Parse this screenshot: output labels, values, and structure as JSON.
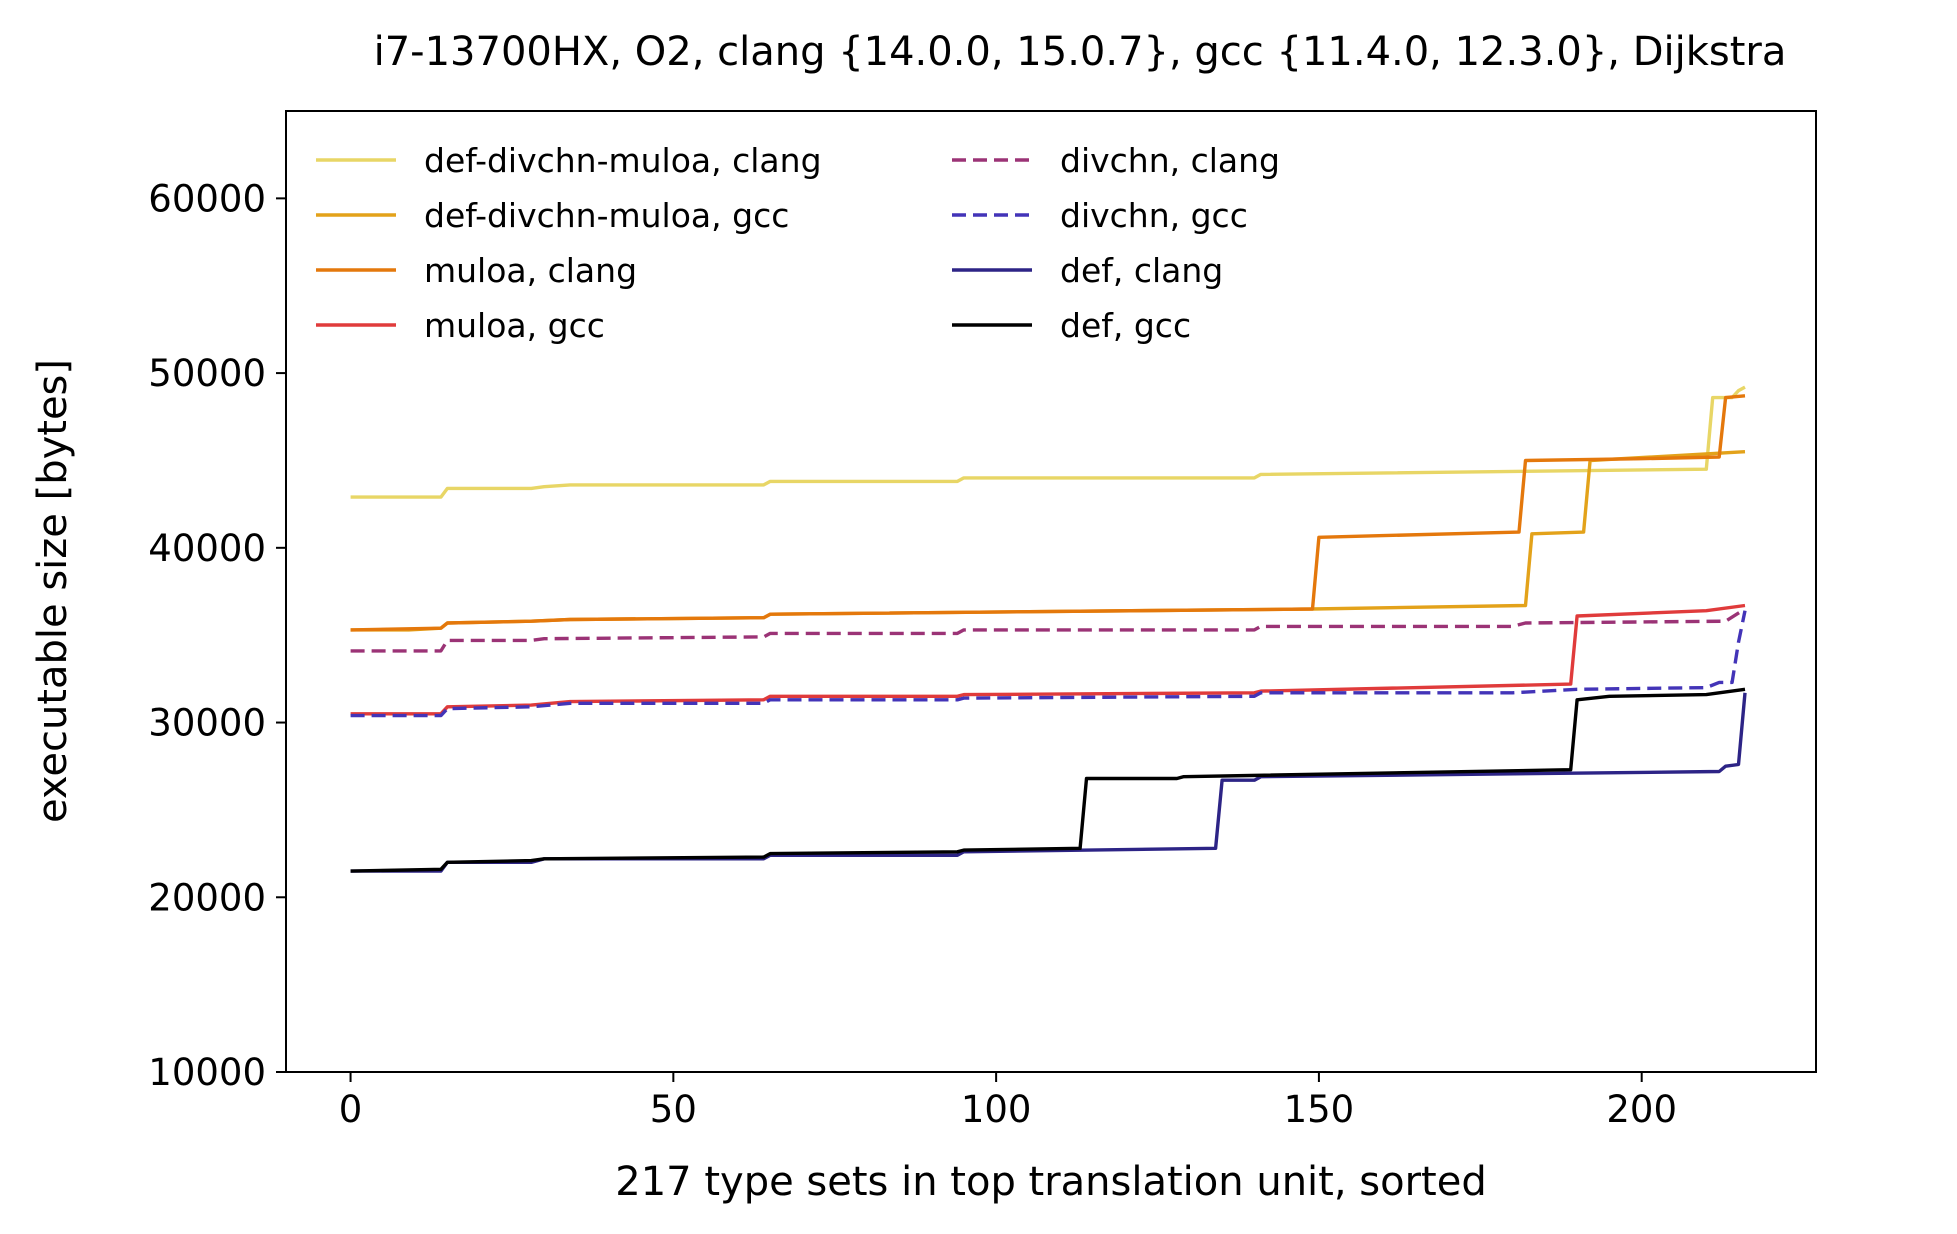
{
  "chart_data": {
    "type": "line",
    "title": "i7-13700HX, O2, clang {14.0.0, 15.0.7}, gcc {11.4.0, 12.3.0}, Dijkstra",
    "xlabel": "217 type sets in top translation unit, sorted",
    "ylabel": "executable size [bytes]",
    "xlim": [
      -10,
      227
    ],
    "ylim": [
      10000,
      65000
    ],
    "xticks": [
      0,
      50,
      100,
      150,
      200
    ],
    "yticks": [
      10000,
      20000,
      30000,
      40000,
      50000,
      60000
    ],
    "grid": false,
    "legend_position": "top-left",
    "legend_columns": 2,
    "series": [
      {
        "name": "def-divchn-muloa, clang",
        "color": "#e8d666",
        "style": "solid",
        "points": [
          [
            0,
            42900
          ],
          [
            14,
            42900
          ],
          [
            15,
            43400
          ],
          [
            28,
            43400
          ],
          [
            30,
            43500
          ],
          [
            34,
            43600
          ],
          [
            64,
            43600
          ],
          [
            65,
            43800
          ],
          [
            94,
            43800
          ],
          [
            95,
            44000
          ],
          [
            140,
            44000
          ],
          [
            141,
            44200
          ],
          [
            210,
            44500
          ],
          [
            211,
            48600
          ],
          [
            214,
            48600
          ],
          [
            215,
            49000
          ],
          [
            216,
            49200
          ]
        ]
      },
      {
        "name": "def-divchn-muloa, gcc",
        "color": "#e3a21a",
        "style": "solid",
        "points": [
          [
            0,
            35300
          ],
          [
            9,
            35300
          ],
          [
            14,
            35400
          ],
          [
            15,
            35700
          ],
          [
            28,
            35800
          ],
          [
            34,
            35900
          ],
          [
            64,
            36000
          ],
          [
            65,
            36200
          ],
          [
            149,
            36500
          ],
          [
            182,
            36700
          ],
          [
            183,
            40800
          ],
          [
            191,
            40900
          ],
          [
            192,
            45000
          ],
          [
            216,
            45500
          ]
        ]
      },
      {
        "name": "muloa, clang",
        "color": "#e4780c",
        "style": "solid",
        "points": [
          [
            0,
            35300
          ],
          [
            14,
            35400
          ],
          [
            15,
            35700
          ],
          [
            28,
            35800
          ],
          [
            34,
            35900
          ],
          [
            64,
            36000
          ],
          [
            65,
            36200
          ],
          [
            149,
            36500
          ],
          [
            150,
            40600
          ],
          [
            160,
            40700
          ],
          [
            181,
            40900
          ],
          [
            182,
            45000
          ],
          [
            200,
            45100
          ],
          [
            212,
            45200
          ],
          [
            213,
            48600
          ],
          [
            216,
            48700
          ]
        ]
      },
      {
        "name": "muloa, gcc",
        "color": "#e03b3b",
        "style": "solid",
        "points": [
          [
            0,
            30500
          ],
          [
            14,
            30500
          ],
          [
            15,
            30900
          ],
          [
            28,
            31000
          ],
          [
            34,
            31200
          ],
          [
            64,
            31300
          ],
          [
            65,
            31500
          ],
          [
            94,
            31500
          ],
          [
            95,
            31600
          ],
          [
            140,
            31700
          ],
          [
            141,
            31800
          ],
          [
            189,
            32200
          ],
          [
            190,
            36100
          ],
          [
            210,
            36400
          ],
          [
            216,
            36700
          ]
        ]
      },
      {
        "name": "divchn, clang",
        "color": "#9b3376",
        "style": "dashed",
        "points": [
          [
            0,
            34100
          ],
          [
            14,
            34100
          ],
          [
            15,
            34700
          ],
          [
            28,
            34700
          ],
          [
            30,
            34800
          ],
          [
            64,
            34900
          ],
          [
            65,
            35100
          ],
          [
            94,
            35100
          ],
          [
            95,
            35300
          ],
          [
            140,
            35300
          ],
          [
            141,
            35500
          ],
          [
            180,
            35500
          ],
          [
            182,
            35700
          ],
          [
            213,
            35800
          ],
          [
            216,
            36500
          ]
        ]
      },
      {
        "name": "divchn, gcc",
        "color": "#4334b8",
        "style": "dashed",
        "points": [
          [
            0,
            30400
          ],
          [
            14,
            30400
          ],
          [
            15,
            30800
          ],
          [
            28,
            30900
          ],
          [
            34,
            31100
          ],
          [
            64,
            31100
          ],
          [
            65,
            31300
          ],
          [
            94,
            31300
          ],
          [
            95,
            31400
          ],
          [
            140,
            31500
          ],
          [
            141,
            31700
          ],
          [
            180,
            31700
          ],
          [
            190,
            31900
          ],
          [
            210,
            32000
          ],
          [
            212,
            32300
          ],
          [
            214,
            32300
          ],
          [
            215,
            34600
          ],
          [
            216,
            36400
          ]
        ]
      },
      {
        "name": "def, clang",
        "color": "#2d2486",
        "style": "solid",
        "points": [
          [
            0,
            21500
          ],
          [
            14,
            21500
          ],
          [
            15,
            22000
          ],
          [
            28,
            22000
          ],
          [
            30,
            22200
          ],
          [
            64,
            22200
          ],
          [
            65,
            22400
          ],
          [
            94,
            22400
          ],
          [
            95,
            22600
          ],
          [
            134,
            22800
          ],
          [
            135,
            26700
          ],
          [
            140,
            26700
          ],
          [
            141,
            26900
          ],
          [
            189,
            27100
          ],
          [
            212,
            27200
          ],
          [
            213,
            27500
          ],
          [
            215,
            27600
          ],
          [
            216,
            31700
          ]
        ]
      },
      {
        "name": "def, gcc",
        "color": "#000000",
        "style": "solid",
        "points": [
          [
            0,
            21500
          ],
          [
            14,
            21600
          ],
          [
            15,
            22000
          ],
          [
            28,
            22100
          ],
          [
            30,
            22200
          ],
          [
            64,
            22300
          ],
          [
            65,
            22500
          ],
          [
            94,
            22600
          ],
          [
            95,
            22700
          ],
          [
            113,
            22800
          ],
          [
            114,
            26800
          ],
          [
            128,
            26800
          ],
          [
            129,
            26900
          ],
          [
            189,
            27300
          ],
          [
            190,
            31300
          ],
          [
            195,
            31500
          ],
          [
            210,
            31600
          ],
          [
            216,
            31900
          ]
        ]
      }
    ]
  }
}
